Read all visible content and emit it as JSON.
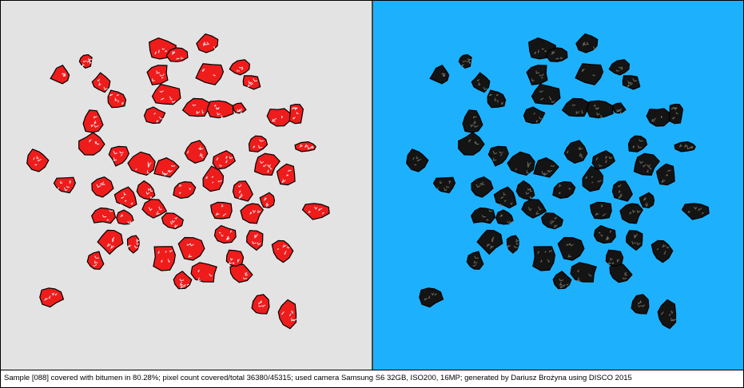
{
  "caption": "Sample [088] covered with bitumen in 80.28%; pixel count covered/total 36380/45315; used camera Samsung S6 32GB, ISO200, 16MP; generated by Dariusz Brożyna using DISCO 2015",
  "panels": {
    "left": {
      "background": "#e3e3e3",
      "particle_fill": "#ef1c1c",
      "particle_stroke": "#000000",
      "highlight": "#ffffff"
    },
    "right": {
      "background": "#1db1fd",
      "particle_fill": "#141414",
      "particle_stroke": "#000000",
      "highlight": "#7a7a6a"
    }
  },
  "coverage_percent": 80.28,
  "pixel_count": {
    "covered": 36380,
    "total": 45315
  }
}
